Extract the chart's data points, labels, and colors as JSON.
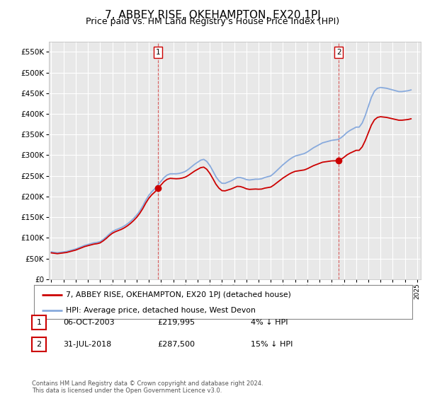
{
  "title": "7, ABBEY RISE, OKEHAMPTON, EX20 1PJ",
  "subtitle": "Price paid vs. HM Land Registry's House Price Index (HPI)",
  "title_fontsize": 11,
  "subtitle_fontsize": 9,
  "background_color": "#ffffff",
  "plot_bg_color": "#e8e8e8",
  "grid_color": "#ffffff",
  "ylim": [
    0,
    575000
  ],
  "yticks": [
    0,
    50000,
    100000,
    150000,
    200000,
    250000,
    300000,
    350000,
    400000,
    450000,
    500000,
    550000
  ],
  "red_line_color": "#cc0000",
  "blue_line_color": "#88aadd",
  "legend_line1": "7, ABBEY RISE, OKEHAMPTON, EX20 1PJ (detached house)",
  "legend_line2": "HPI: Average price, detached house, West Devon",
  "table_rows": [
    {
      "num": "1",
      "date": "06-OCT-2003",
      "price": "£219,995",
      "hpi": "4% ↓ HPI"
    },
    {
      "num": "2",
      "date": "31-JUL-2018",
      "price": "£287,500",
      "hpi": "15% ↓ HPI"
    }
  ],
  "footnote": "Contains HM Land Registry data © Crown copyright and database right 2024.\nThis data is licensed under the Open Government Licence v3.0.",
  "hpi_data": {
    "years": [
      1995.0,
      1995.25,
      1995.5,
      1995.75,
      1996.0,
      1996.25,
      1996.5,
      1996.75,
      1997.0,
      1997.25,
      1997.5,
      1997.75,
      1998.0,
      1998.25,
      1998.5,
      1998.75,
      1999.0,
      1999.25,
      1999.5,
      1999.75,
      2000.0,
      2000.25,
      2000.5,
      2000.75,
      2001.0,
      2001.25,
      2001.5,
      2001.75,
      2002.0,
      2002.25,
      2002.5,
      2002.75,
      2003.0,
      2003.25,
      2003.5,
      2003.75,
      2004.0,
      2004.25,
      2004.5,
      2004.75,
      2005.0,
      2005.25,
      2005.5,
      2005.75,
      2006.0,
      2006.25,
      2006.5,
      2006.75,
      2007.0,
      2007.25,
      2007.5,
      2007.75,
      2008.0,
      2008.25,
      2008.5,
      2008.75,
      2009.0,
      2009.25,
      2009.5,
      2009.75,
      2010.0,
      2010.25,
      2010.5,
      2010.75,
      2011.0,
      2011.25,
      2011.5,
      2011.75,
      2012.0,
      2012.25,
      2012.5,
      2012.75,
      2013.0,
      2013.25,
      2013.5,
      2013.75,
      2014.0,
      2014.25,
      2014.5,
      2014.75,
      2015.0,
      2015.25,
      2015.5,
      2015.75,
      2016.0,
      2016.25,
      2016.5,
      2016.75,
      2017.0,
      2017.25,
      2017.5,
      2017.75,
      2018.0,
      2018.25,
      2018.5,
      2018.75,
      2019.0,
      2019.25,
      2019.5,
      2019.75,
      2020.0,
      2020.25,
      2020.5,
      2020.75,
      2021.0,
      2021.25,
      2021.5,
      2021.75,
      2022.0,
      2022.25,
      2022.5,
      2022.75,
      2023.0,
      2023.25,
      2023.5,
      2023.75,
      2024.0,
      2024.25,
      2024.5
    ],
    "values": [
      66000,
      65000,
      64000,
      65000,
      66000,
      67000,
      69000,
      71000,
      73000,
      76000,
      79000,
      82000,
      84000,
      86000,
      88000,
      89000,
      91000,
      96000,
      102000,
      109000,
      115000,
      119000,
      122000,
      125000,
      129000,
      134000,
      140000,
      147000,
      155000,
      165000,
      177000,
      191000,
      203000,
      212000,
      219000,
      228000,
      237000,
      246000,
      252000,
      255000,
      255000,
      255000,
      256000,
      258000,
      261000,
      266000,
      272000,
      278000,
      283000,
      288000,
      290000,
      285000,
      275000,
      262000,
      248000,
      238000,
      232000,
      232000,
      235000,
      238000,
      242000,
      246000,
      246000,
      244000,
      241000,
      240000,
      241000,
      242000,
      242000,
      243000,
      246000,
      248000,
      250000,
      256000,
      263000,
      270000,
      277000,
      283000,
      289000,
      294000,
      298000,
      300000,
      302000,
      304000,
      308000,
      313000,
      318000,
      322000,
      326000,
      330000,
      332000,
      334000,
      336000,
      337000,
      338000,
      342000,
      348000,
      355000,
      360000,
      364000,
      368000,
      368000,
      378000,
      396000,
      418000,
      440000,
      455000,
      462000,
      464000,
      463000,
      462000,
      460000,
      458000,
      456000,
      454000,
      454000,
      455000,
      456000,
      458000
    ]
  },
  "price_data": {
    "years": [
      2003.75,
      2018.58
    ],
    "values": [
      219995,
      287500
    ]
  }
}
